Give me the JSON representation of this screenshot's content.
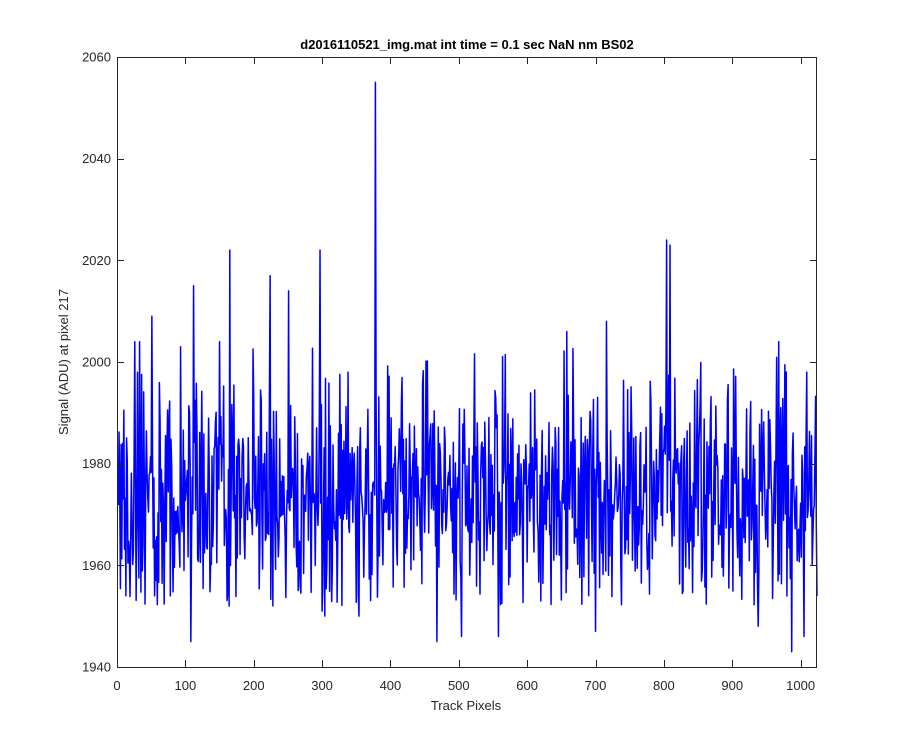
{
  "chart_data": {
    "type": "line",
    "title": "d2016110521_img.mat int time = 0.1 sec  NaN nm BS02",
    "xlabel": "Track Pixels",
    "ylabel": "Signal (ADU) at pixel 217",
    "xlim": [
      0,
      1024
    ],
    "ylim": [
      1940,
      2060
    ],
    "xticks": [
      0,
      100,
      200,
      300,
      400,
      500,
      600,
      700,
      800,
      900,
      1000
    ],
    "yticks": [
      1940,
      1960,
      1980,
      2000,
      2020,
      2040,
      2060
    ],
    "grid": false,
    "legend": "none",
    "series": [
      {
        "color": "#0000ff",
        "x_start": 1,
        "x_step": 1,
        "seed": 217,
        "n_points": 1024,
        "baseline_mean": 1974,
        "noise_sd": 11,
        "min_value": 1943,
        "max_value": 2055,
        "notable_points": [
          {
            "x": 8,
            "y": 1984
          },
          {
            "x": 13,
            "y": 1954
          },
          {
            "x": 26,
            "y": 2004
          },
          {
            "x": 33,
            "y": 2004
          },
          {
            "x": 51,
            "y": 2009
          },
          {
            "x": 55,
            "y": 1954
          },
          {
            "x": 78,
            "y": 1954
          },
          {
            "x": 93,
            "y": 2003
          },
          {
            "x": 108,
            "y": 1945
          },
          {
            "x": 112,
            "y": 2015
          },
          {
            "x": 150,
            "y": 2004
          },
          {
            "x": 164,
            "y": 1952
          },
          {
            "x": 165,
            "y": 2022
          },
          {
            "x": 224,
            "y": 2017
          },
          {
            "x": 228,
            "y": 1952
          },
          {
            "x": 251,
            "y": 2014
          },
          {
            "x": 297,
            "y": 2022
          },
          {
            "x": 300,
            "y": 1951
          },
          {
            "x": 304,
            "y": 1950
          },
          {
            "x": 354,
            "y": 1950
          },
          {
            "x": 378,
            "y": 2055
          },
          {
            "x": 468,
            "y": 1945
          },
          {
            "x": 504,
            "y": 1946
          },
          {
            "x": 558,
            "y": 1946
          },
          {
            "x": 658,
            "y": 2006
          },
          {
            "x": 700,
            "y": 1947
          },
          {
            "x": 716,
            "y": 2008
          },
          {
            "x": 804,
            "y": 2024
          },
          {
            "x": 809,
            "y": 2023
          },
          {
            "x": 938,
            "y": 1948
          },
          {
            "x": 968,
            "y": 2004
          },
          {
            "x": 987,
            "y": 1943
          },
          {
            "x": 1005,
            "y": 1946
          },
          {
            "x": 1009,
            "y": 1998
          },
          {
            "x": 1024,
            "y": 1954
          }
        ]
      }
    ]
  }
}
